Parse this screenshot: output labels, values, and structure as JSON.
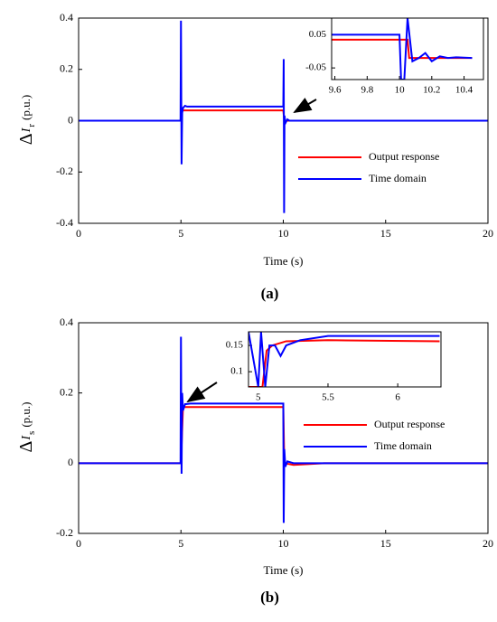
{
  "chart_data": [
    {
      "type": "line",
      "caption": "(a)",
      "xlabel": "Time (s)",
      "ylabel_symbol": "Δ",
      "ylabel_var": "I",
      "ylabel_sub": "r",
      "ylabel_unit": "(p.u.)",
      "xlim": [
        0,
        20
      ],
      "xticks": [
        0,
        5,
        10,
        15,
        20
      ],
      "ylim": [
        -0.4,
        0.4
      ],
      "yticks": [
        -0.4,
        -0.2,
        0,
        0.2,
        0.4
      ],
      "series": [
        {
          "name": "Output response",
          "color": "#ff0000",
          "x": [
            0,
            5,
            5.05,
            10,
            10.05,
            20
          ],
          "values": [
            0,
            0,
            0.04,
            0.04,
            0,
            0
          ]
        },
        {
          "name": "Time domain",
          "color": "#0000ff",
          "x": [
            0,
            4.98,
            5.0,
            5.03,
            5.06,
            5.1,
            5.2,
            5.3,
            10,
            10.02,
            10.04,
            10.06,
            10.1,
            10.2,
            10.3,
            20
          ],
          "values": [
            0,
            0,
            0.39,
            -0.17,
            0.03,
            0.05,
            0.058,
            0.055,
            0.055,
            0.24,
            -0.36,
            0.02,
            -0.01,
            0.005,
            0,
            0
          ]
        }
      ],
      "inset": {
        "xlim": [
          9.58,
          10.52
        ],
        "xticks": [
          9.6,
          9.8,
          10,
          10.2,
          10.4
        ],
        "ylim": [
          -0.085,
          0.1
        ],
        "yticks": [
          -0.05,
          0.05
        ],
        "series": [
          {
            "color": "#ff0000",
            "x": [
              9.58,
              10.05,
              10.06,
              10.45
            ],
            "values": [
              0.035,
              0.035,
              -0.02,
              -0.02
            ]
          },
          {
            "color": "#0000ff",
            "x": [
              9.58,
              10.0,
              10.01,
              10.03,
              10.05,
              10.08,
              10.12,
              10.16,
              10.2,
              10.25,
              10.3,
              10.35,
              10.45
            ],
            "values": [
              0.05,
              0.05,
              -0.085,
              -0.085,
              0.1,
              -0.03,
              -0.02,
              -0.005,
              -0.03,
              -0.015,
              -0.02,
              -0.018,
              -0.02
            ]
          }
        ]
      }
    },
    {
      "type": "line",
      "caption": "(b)",
      "xlabel": "Time (s)",
      "ylabel_symbol": "Δ",
      "ylabel_var": "I",
      "ylabel_sub": "s",
      "ylabel_unit": "(p.u.)",
      "xlim": [
        0,
        20
      ],
      "xticks": [
        0,
        5,
        10,
        15,
        20
      ],
      "ylim": [
        -0.2,
        0.4
      ],
      "yticks": [
        -0.2,
        0,
        0.2,
        0.4
      ],
      "series": [
        {
          "name": "Output response",
          "color": "#ff0000",
          "x": [
            0,
            5,
            5.1,
            10,
            10.05,
            10.5,
            12,
            20
          ],
          "values": [
            0,
            0,
            0.16,
            0.16,
            0,
            -0.005,
            0,
            0
          ]
        },
        {
          "name": "Time domain",
          "color": "#0000ff",
          "x": [
            0,
            4.98,
            5.0,
            5.03,
            5.06,
            5.1,
            5.2,
            5.5,
            10,
            10.02,
            10.05,
            10.1,
            10.2,
            10.5,
            20
          ],
          "values": [
            0,
            0,
            0.36,
            -0.03,
            0.2,
            0.15,
            0.168,
            0.17,
            0.17,
            -0.17,
            0.04,
            -0.01,
            0.005,
            0,
            0
          ]
        }
      ],
      "inset": {
        "xlim": [
          4.93,
          6.31
        ],
        "xticks": [
          5,
          5.5,
          6
        ],
        "ylim": [
          0.071,
          0.176
        ],
        "yticks": [
          0.1,
          0.15
        ],
        "series": [
          {
            "color": "#ff0000",
            "x": [
              4.93,
              5.03,
              5.06,
              5.1,
              5.2,
              5.5,
              6.3
            ],
            "values": [
              0.071,
              0.071,
              0.14,
              0.15,
              0.158,
              0.16,
              0.158
            ]
          },
          {
            "color": "#0000ff",
            "x": [
              4.93,
              5.0,
              5.02,
              5.05,
              5.08,
              5.12,
              5.16,
              5.2,
              5.3,
              5.5,
              6.0,
              6.3
            ],
            "values": [
              0.176,
              0.071,
              0.176,
              0.071,
              0.15,
              0.15,
              0.13,
              0.15,
              0.16,
              0.168,
              0.168,
              0.168
            ]
          }
        ]
      }
    }
  ]
}
